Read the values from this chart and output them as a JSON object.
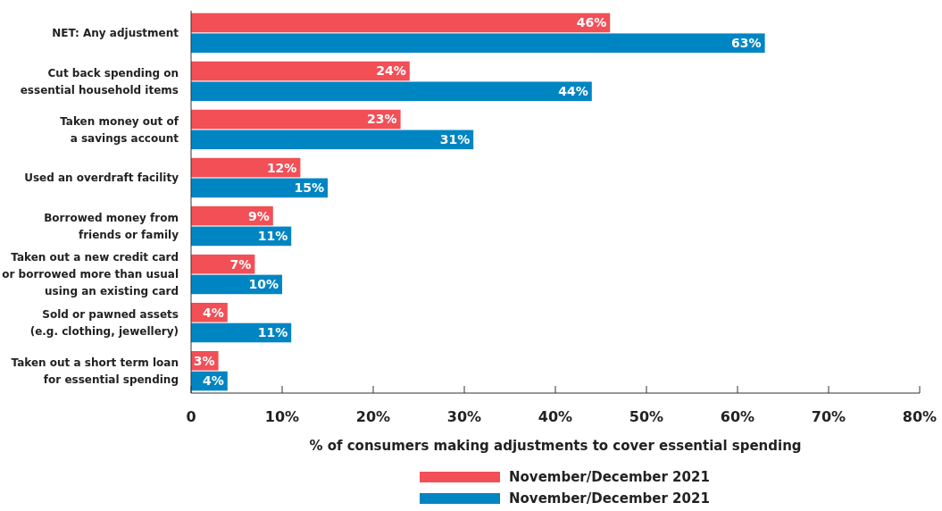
{
  "chart_data": {
    "type": "bar",
    "orientation": "horizontal",
    "xlabel": "% of consumers making adjustments to cover essential spending",
    "categories": [
      "NET: Any adjustment",
      "Cut back spending on\nessential household items",
      "Taken money out of\na savings account",
      "Used an overdraft facility",
      "Borrowed money from\nfriends or family",
      "Taken out a new credit card\nor borrowed more than usual\nusing an existing card",
      "Sold or pawned assets\n(e.g. clothing, jewellery)",
      "Taken out a short term loan\nfor essential spending"
    ],
    "series": [
      {
        "name": "November/December 2021",
        "color": "#f24f57",
        "values": [
          46,
          24,
          23,
          12,
          9,
          7,
          4,
          3
        ],
        "value_labels": [
          "46%",
          "24%",
          "23%",
          "12%",
          "9%",
          "7%",
          "4%",
          "3%"
        ]
      },
      {
        "name": "November/December 2021",
        "color": "#0085c3",
        "values": [
          63,
          44,
          31,
          15,
          11,
          10,
          11,
          4
        ],
        "value_labels": [
          "63%",
          "44%",
          "31%",
          "15%",
          "11%",
          "10%",
          "11%",
          "4%"
        ]
      }
    ],
    "xlim": [
      0,
      80
    ],
    "xticks": [
      {
        "value": 0,
        "label": "0"
      },
      {
        "value": 10,
        "label": "10%"
      },
      {
        "value": 20,
        "label": "20%"
      },
      {
        "value": 30,
        "label": "30%"
      },
      {
        "value": 40,
        "label": "40%"
      },
      {
        "value": 50,
        "label": "50%"
      },
      {
        "value": 60,
        "label": "60%"
      },
      {
        "value": 70,
        "label": "70%"
      },
      {
        "value": 80,
        "label": "80%"
      }
    ],
    "grid": false,
    "legend": "bottom"
  }
}
